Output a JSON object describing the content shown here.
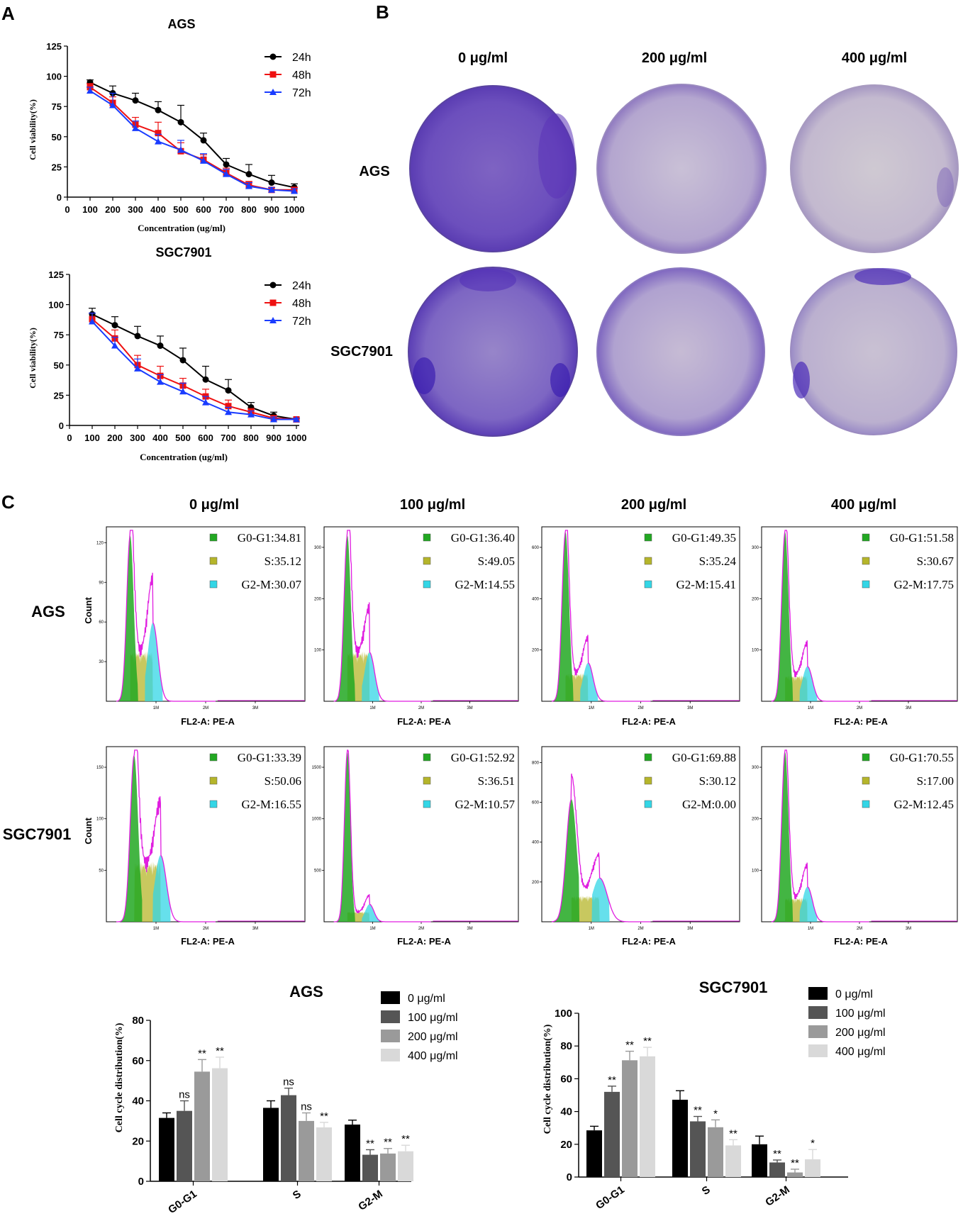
{
  "panel_letters": {
    "a": "A",
    "b": "B",
    "c": "C"
  },
  "colors": {
    "h24": "#000000",
    "h48": "#ee1111",
    "h72": "#1a3cff",
    "g0": "#22a822",
    "s": "#b5b52a",
    "g2": "#33d6e6",
    "hist": "#e01ee0"
  },
  "legend_times": [
    "24h",
    "48h",
    "72h"
  ],
  "viability": [
    {
      "title": "AGS",
      "xlabel": "Concentration (ug/ml)",
      "ylabel": "Cell viability(%)",
      "xticks": [
        "0",
        "100",
        "200",
        "300",
        "400",
        "500",
        "600",
        "700",
        "800",
        "900",
        "1000"
      ],
      "yticks": [
        "0",
        "25",
        "50",
        "75",
        "100",
        "125"
      ]
    },
    {
      "title": "SGC7901",
      "xlabel": "Concentration (ug/ml)",
      "ylabel": "Cell viability(%)",
      "xticks": [
        "0",
        "100",
        "200",
        "300",
        "400",
        "500",
        "600",
        "700",
        "800",
        "900",
        "1000"
      ],
      "yticks": [
        "0",
        "25",
        "50",
        "75",
        "100",
        "125"
      ]
    }
  ],
  "colony": {
    "concentrations": [
      "0 μg/ml",
      "200 μg/ml",
      "400 μg/ml"
    ],
    "rows": [
      "AGS",
      "SGC7901"
    ]
  },
  "flow": {
    "concentrations": [
      "0 μg/ml",
      "100 μg/ml",
      "200 μg/ml",
      "400 μg/ml"
    ],
    "rows": [
      "AGS",
      "SGC7901"
    ],
    "ylabel": "Count",
    "xlabel": "FL2-A: PE-A",
    "xticks": [
      "1M",
      "2M",
      "3M"
    ],
    "panels": [
      [
        {
          "g": "G0-G1:34.81",
          "s": "S:35.12",
          "m": "G2-M:30.07"
        },
        {
          "g": "G0-G1:36.40",
          "s": "S:49.05",
          "m": "G2-M:14.55"
        },
        {
          "g": "G0-G1:49.35",
          "s": "S:35.24",
          "m": "G2-M:15.41"
        },
        {
          "g": "G0-G1:51.58",
          "s": "S:30.67",
          "m": "G2-M:17.75"
        }
      ],
      [
        {
          "g": "G0-G1:33.39",
          "s": "S:50.06",
          "m": "G2-M:16.55"
        },
        {
          "g": "G0-G1:52.92",
          "s": "S:36.51",
          "m": "G2-M:10.57"
        },
        {
          "g": "G0-G1:69.88",
          "s": "S:30.12",
          "m": "G2-M:0.00"
        },
        {
          "g": "G0-G1:70.55",
          "s": "S:17.00",
          "m": "G2-M:12.45"
        }
      ]
    ],
    "yticks": [
      [
        [
          "30",
          "60",
          "90",
          "120"
        ],
        [
          "100",
          "200",
          "300"
        ],
        [
          "200",
          "400",
          "600"
        ],
        [
          "100",
          "200",
          "300"
        ]
      ],
      [
        [
          "50",
          "100",
          "150"
        ],
        [
          "500",
          "1000",
          "1500"
        ],
        [
          "200",
          "400",
          "600",
          "800"
        ],
        [
          "100",
          "200",
          "300"
        ]
      ]
    ]
  },
  "chart_data": [
    {
      "type": "line",
      "title": "AGS",
      "xlabel": "Concentration (ug/ml)",
      "ylabel": "Cell viability(%)",
      "xlim": [
        0,
        1000
      ],
      "ylim": [
        0,
        125
      ],
      "x": [
        100,
        200,
        300,
        400,
        500,
        600,
        700,
        800,
        900,
        1000
      ],
      "series": [
        {
          "name": "24h",
          "values": [
            95,
            86,
            80,
            72,
            62,
            47,
            27,
            19,
            12,
            8
          ],
          "errors": [
            2,
            6,
            6,
            7,
            14,
            6,
            5,
            8,
            6,
            3
          ]
        },
        {
          "name": "48h",
          "values": [
            91,
            78,
            60,
            53,
            38,
            31,
            20,
            10,
            6,
            6
          ],
          "errors": [
            3,
            5,
            6,
            9,
            7,
            4,
            4,
            3,
            2,
            2
          ]
        },
        {
          "name": "72h",
          "values": [
            88,
            76,
            57,
            46,
            39,
            30,
            19,
            9,
            6,
            5
          ],
          "errors": [
            3,
            10,
            6,
            6,
            8,
            6,
            4,
            3,
            2,
            2
          ]
        }
      ]
    },
    {
      "type": "line",
      "title": "SGC7901",
      "xlabel": "Concentration (ug/ml)",
      "ylabel": "Cell viability(%)",
      "xlim": [
        0,
        1000
      ],
      "ylim": [
        0,
        125
      ],
      "x": [
        100,
        200,
        300,
        400,
        500,
        600,
        700,
        800,
        900,
        1000
      ],
      "series": [
        {
          "name": "24h",
          "values": [
            92,
            83,
            74,
            66,
            54,
            38,
            29,
            15,
            8,
            5
          ],
          "errors": [
            5,
            7,
            8,
            8,
            10,
            11,
            9,
            4,
            3,
            1
          ]
        },
        {
          "name": "48h",
          "values": [
            88,
            72,
            50,
            41,
            33,
            24,
            16,
            11,
            6,
            5
          ],
          "errors": [
            5,
            7,
            8,
            8,
            6,
            6,
            5,
            3,
            2,
            1
          ]
        },
        {
          "name": "72h",
          "values": [
            86,
            66,
            47,
            36,
            28,
            19,
            11,
            9,
            5,
            5
          ],
          "errors": [
            7,
            7,
            8,
            6,
            7,
            5,
            4,
            3,
            2,
            1
          ]
        }
      ]
    },
    {
      "type": "bar",
      "title": "AGS",
      "ylabel": "Cell cycle distribution(%)",
      "ylim": [
        0,
        80
      ],
      "yticks": [
        "0",
        "20",
        "40",
        "60",
        "80"
      ],
      "categories": [
        "G0-G1",
        "S",
        "G2-M"
      ],
      "series": [
        {
          "name": "0 μg/ml",
          "values": [
            31.5,
            36.5,
            28.2
          ],
          "errors": [
            2.5,
            3.5,
            2.2
          ],
          "marks": [
            "",
            "",
            ""
          ]
        },
        {
          "name": "100 μg/ml",
          "values": [
            35,
            42.8,
            13.2
          ],
          "errors": [
            5,
            3.5,
            2.5
          ],
          "marks": [
            "ns",
            "ns",
            "**"
          ]
        },
        {
          "name": "200 μg/ml",
          "values": [
            54.5,
            30,
            13.8
          ],
          "errors": [
            6,
            4,
            2.5
          ],
          "marks": [
            "**",
            "ns",
            "**"
          ]
        },
        {
          "name": "400 μg/ml",
          "values": [
            56.2,
            26.8,
            14.9
          ],
          "errors": [
            5.5,
            2.5,
            3
          ],
          "marks": [
            "**",
            "**",
            "**"
          ]
        }
      ]
    },
    {
      "type": "bar",
      "title": "SGC7901",
      "ylabel": "Cell cycle distribution(%)",
      "ylim": [
        0,
        100
      ],
      "yticks": [
        "0",
        "20",
        "40",
        "60",
        "80",
        "100"
      ],
      "categories": [
        "G0-G1",
        "S",
        "G2-M"
      ],
      "series": [
        {
          "name": "0 μg/ml",
          "values": [
            28.5,
            47.2,
            20
          ],
          "errors": [
            2.5,
            5.5,
            5
          ],
          "marks": [
            "",
            "",
            ""
          ]
        },
        {
          "name": "100 μg/ml",
          "values": [
            52,
            34,
            8.9
          ],
          "errors": [
            3.5,
            3,
            1.5
          ],
          "marks": [
            "**",
            "**",
            "**"
          ]
        },
        {
          "name": "200 μg/ml",
          "values": [
            71.3,
            30.4,
            2.8
          ],
          "errors": [
            5.5,
            4.5,
            2
          ],
          "marks": [
            "**",
            "*",
            "**"
          ]
        },
        {
          "name": "400 μg/ml",
          "values": [
            73.7,
            19.3,
            10.8
          ],
          "errors": [
            5.5,
            3.5,
            6
          ],
          "marks": [
            "**",
            "**",
            "*"
          ]
        }
      ]
    }
  ]
}
